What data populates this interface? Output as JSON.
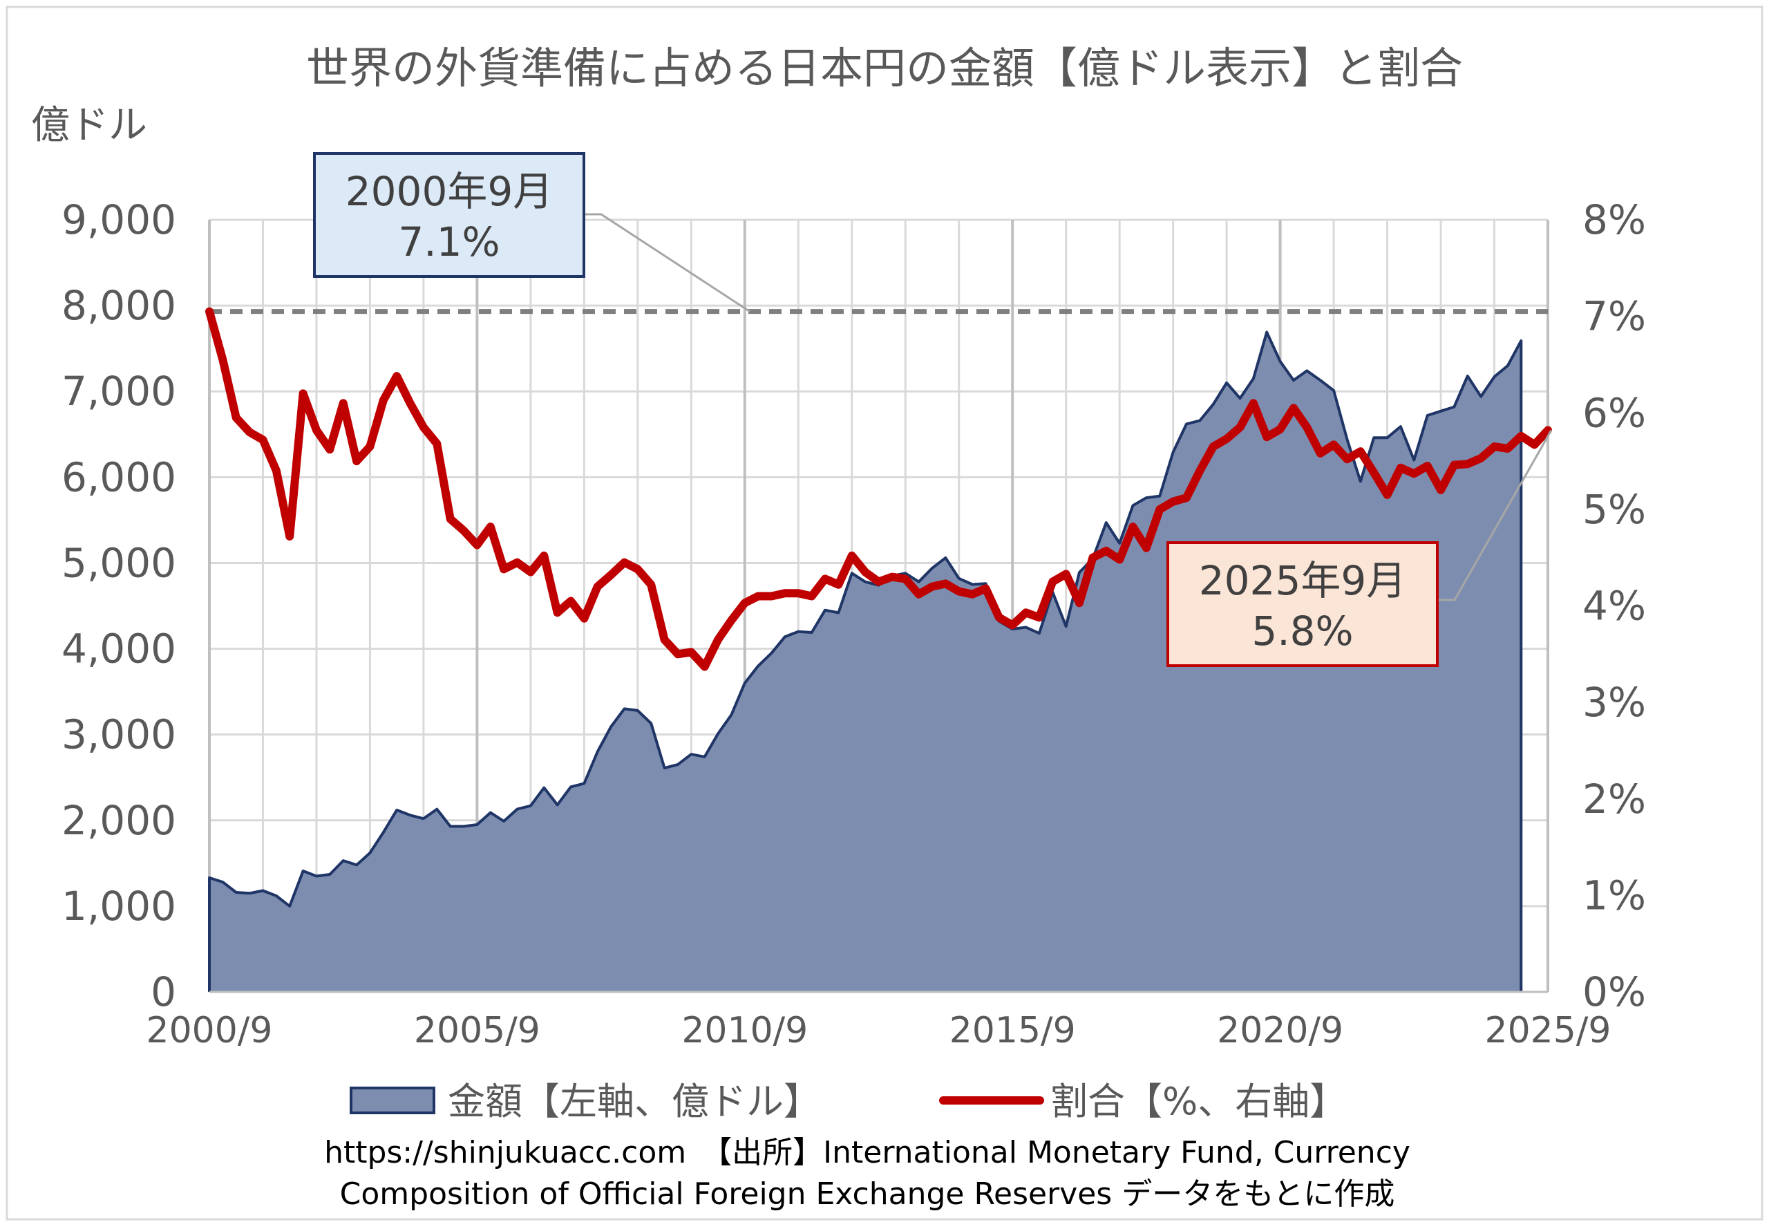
{
  "chart_data": {
    "type": "line",
    "title": "世界の外貨準備に占める日本円の金額【億ドル表示】と割合",
    "y_left_label": "億ドル",
    "y_left_range": [
      0,
      9000
    ],
    "y_left_ticks": [
      "0",
      "1,000",
      "2,000",
      "3,000",
      "4,000",
      "5,000",
      "6,000",
      "7,000",
      "8,000",
      "9,000"
    ],
    "y_right_range": [
      0,
      8
    ],
    "y_right_ticks": [
      "0%",
      "1%",
      "2%",
      "3%",
      "4%",
      "5%",
      "6%",
      "7%",
      "8%"
    ],
    "x_range": [
      2000.75,
      2025.75
    ],
    "x_ticks": [
      {
        "x": 2000.75,
        "label": "2000/9"
      },
      {
        "x": 2005.75,
        "label": "2005/9"
      },
      {
        "x": 2010.75,
        "label": "2010/9"
      },
      {
        "x": 2015.75,
        "label": "2015/9"
      },
      {
        "x": 2020.75,
        "label": "2020/9"
      },
      {
        "x": 2025.75,
        "label": "2025/9"
      }
    ],
    "grid": true,
    "legend_position": "bottom",
    "series": [
      {
        "name": "金額【左軸、億ドル】",
        "axis": "left",
        "kind": "area",
        "color": "#1f3566",
        "fill": "#7d8db0",
        "points": [
          [
            2000.75,
            1330
          ],
          [
            2001.0,
            1280
          ],
          [
            2001.25,
            1160
          ],
          [
            2001.5,
            1150
          ],
          [
            2001.75,
            1180
          ],
          [
            2002.0,
            1120
          ],
          [
            2002.25,
            1000
          ],
          [
            2002.5,
            1410
          ],
          [
            2002.75,
            1350
          ],
          [
            2003.0,
            1370
          ],
          [
            2003.25,
            1530
          ],
          [
            2003.5,
            1480
          ],
          [
            2003.75,
            1620
          ],
          [
            2004.0,
            1860
          ],
          [
            2004.25,
            2120
          ],
          [
            2004.5,
            2060
          ],
          [
            2004.75,
            2020
          ],
          [
            2005.0,
            2130
          ],
          [
            2005.25,
            1930
          ],
          [
            2005.5,
            1930
          ],
          [
            2005.75,
            1950
          ],
          [
            2006.0,
            2090
          ],
          [
            2006.25,
            1990
          ],
          [
            2006.5,
            2130
          ],
          [
            2006.75,
            2170
          ],
          [
            2007.0,
            2380
          ],
          [
            2007.25,
            2180
          ],
          [
            2007.5,
            2390
          ],
          [
            2007.75,
            2430
          ],
          [
            2008.0,
            2800
          ],
          [
            2008.25,
            3090
          ],
          [
            2008.5,
            3300
          ],
          [
            2008.75,
            3280
          ],
          [
            2009.0,
            3130
          ],
          [
            2009.25,
            2610
          ],
          [
            2009.5,
            2650
          ],
          [
            2009.75,
            2770
          ],
          [
            2010.0,
            2740
          ],
          [
            2010.25,
            3010
          ],
          [
            2010.5,
            3230
          ],
          [
            2010.75,
            3600
          ],
          [
            2011.0,
            3800
          ],
          [
            2011.25,
            3950
          ],
          [
            2011.5,
            4140
          ],
          [
            2011.75,
            4200
          ],
          [
            2012.0,
            4190
          ],
          [
            2012.25,
            4450
          ],
          [
            2012.5,
            4420
          ],
          [
            2012.75,
            4880
          ],
          [
            2013.0,
            4780
          ],
          [
            2013.25,
            4740
          ],
          [
            2013.5,
            4850
          ],
          [
            2013.75,
            4880
          ],
          [
            2014.0,
            4780
          ],
          [
            2014.25,
            4940
          ],
          [
            2014.5,
            5060
          ],
          [
            2014.75,
            4820
          ],
          [
            2015.0,
            4750
          ],
          [
            2015.25,
            4760
          ],
          [
            2015.5,
            4320
          ],
          [
            2015.75,
            4230
          ],
          [
            2016.0,
            4250
          ],
          [
            2016.25,
            4180
          ],
          [
            2016.5,
            4660
          ],
          [
            2016.75,
            4260
          ],
          [
            2017.0,
            4890
          ],
          [
            2017.25,
            5050
          ],
          [
            2017.5,
            5470
          ],
          [
            2017.75,
            5230
          ],
          [
            2018.0,
            5670
          ],
          [
            2018.25,
            5760
          ],
          [
            2018.5,
            5780
          ],
          [
            2018.75,
            6290
          ],
          [
            2019.0,
            6620
          ],
          [
            2019.25,
            6660
          ],
          [
            2019.5,
            6850
          ],
          [
            2019.75,
            7100
          ],
          [
            2020.0,
            6920
          ],
          [
            2020.25,
            7150
          ],
          [
            2020.5,
            7690
          ],
          [
            2020.75,
            7350
          ],
          [
            2021.0,
            7130
          ],
          [
            2021.25,
            7240
          ],
          [
            2021.5,
            7130
          ],
          [
            2021.75,
            7010
          ],
          [
            2022.0,
            6440
          ],
          [
            2022.25,
            5950
          ],
          [
            2022.5,
            6460
          ],
          [
            2022.75,
            6460
          ],
          [
            2023.0,
            6590
          ],
          [
            2023.25,
            6200
          ],
          [
            2023.5,
            6720
          ],
          [
            2023.75,
            6770
          ],
          [
            2024.0,
            6820
          ],
          [
            2024.25,
            7180
          ],
          [
            2024.5,
            6940
          ],
          [
            2024.75,
            7170
          ],
          [
            2025.0,
            7300
          ],
          [
            2025.25,
            7590
          ]
        ]
      },
      {
        "name": "割合【%、右軸】",
        "axis": "right",
        "kind": "line",
        "color": "#c00000",
        "points": [
          [
            2000.75,
            7.05
          ],
          [
            2001.0,
            6.55
          ],
          [
            2001.25,
            5.95
          ],
          [
            2001.5,
            5.8
          ],
          [
            2001.75,
            5.72
          ],
          [
            2002.0,
            5.4
          ],
          [
            2002.25,
            4.72
          ],
          [
            2002.5,
            6.2
          ],
          [
            2002.75,
            5.82
          ],
          [
            2003.0,
            5.62
          ],
          [
            2003.25,
            6.1
          ],
          [
            2003.5,
            5.5
          ],
          [
            2003.75,
            5.65
          ],
          [
            2004.0,
            6.13
          ],
          [
            2004.25,
            6.38
          ],
          [
            2004.5,
            6.1
          ],
          [
            2004.75,
            5.85
          ],
          [
            2005.0,
            5.68
          ],
          [
            2005.25,
            4.9
          ],
          [
            2005.5,
            4.78
          ],
          [
            2005.75,
            4.63
          ],
          [
            2006.0,
            4.82
          ],
          [
            2006.25,
            4.38
          ],
          [
            2006.5,
            4.45
          ],
          [
            2006.75,
            4.35
          ],
          [
            2007.0,
            4.52
          ],
          [
            2007.25,
            3.93
          ],
          [
            2007.5,
            4.05
          ],
          [
            2007.75,
            3.87
          ],
          [
            2008.0,
            4.2
          ],
          [
            2008.25,
            4.32
          ],
          [
            2008.5,
            4.45
          ],
          [
            2008.75,
            4.38
          ],
          [
            2009.0,
            4.22
          ],
          [
            2009.25,
            3.65
          ],
          [
            2009.5,
            3.5
          ],
          [
            2009.75,
            3.52
          ],
          [
            2010.0,
            3.37
          ],
          [
            2010.25,
            3.65
          ],
          [
            2010.5,
            3.85
          ],
          [
            2010.75,
            4.03
          ],
          [
            2011.0,
            4.1
          ],
          [
            2011.25,
            4.1
          ],
          [
            2011.5,
            4.13
          ],
          [
            2011.75,
            4.13
          ],
          [
            2012.0,
            4.1
          ],
          [
            2012.25,
            4.28
          ],
          [
            2012.5,
            4.22
          ],
          [
            2012.75,
            4.52
          ],
          [
            2013.0,
            4.35
          ],
          [
            2013.25,
            4.25
          ],
          [
            2013.5,
            4.3
          ],
          [
            2013.75,
            4.28
          ],
          [
            2014.0,
            4.12
          ],
          [
            2014.25,
            4.2
          ],
          [
            2014.5,
            4.23
          ],
          [
            2014.75,
            4.15
          ],
          [
            2015.0,
            4.12
          ],
          [
            2015.25,
            4.18
          ],
          [
            2015.5,
            3.88
          ],
          [
            2015.75,
            3.8
          ],
          [
            2016.0,
            3.93
          ],
          [
            2016.25,
            3.88
          ],
          [
            2016.5,
            4.25
          ],
          [
            2016.75,
            4.33
          ],
          [
            2017.0,
            4.03
          ],
          [
            2017.25,
            4.5
          ],
          [
            2017.5,
            4.57
          ],
          [
            2017.75,
            4.48
          ],
          [
            2018.0,
            4.82
          ],
          [
            2018.25,
            4.6
          ],
          [
            2018.5,
            5.0
          ],
          [
            2018.75,
            5.08
          ],
          [
            2019.0,
            5.12
          ],
          [
            2019.25,
            5.4
          ],
          [
            2019.5,
            5.65
          ],
          [
            2019.75,
            5.73
          ],
          [
            2020.0,
            5.85
          ],
          [
            2020.25,
            6.1
          ],
          [
            2020.5,
            5.75
          ],
          [
            2020.75,
            5.83
          ],
          [
            2021.0,
            6.05
          ],
          [
            2021.25,
            5.85
          ],
          [
            2021.5,
            5.58
          ],
          [
            2021.75,
            5.67
          ],
          [
            2022.0,
            5.52
          ],
          [
            2022.25,
            5.6
          ],
          [
            2022.5,
            5.38
          ],
          [
            2022.75,
            5.15
          ],
          [
            2023.0,
            5.43
          ],
          [
            2023.25,
            5.37
          ],
          [
            2023.5,
            5.45
          ],
          [
            2023.75,
            5.2
          ],
          [
            2024.0,
            5.46
          ],
          [
            2024.25,
            5.47
          ],
          [
            2024.5,
            5.53
          ],
          [
            2024.75,
            5.65
          ],
          [
            2025.0,
            5.63
          ],
          [
            2025.25,
            5.76
          ],
          [
            2025.5,
            5.67
          ],
          [
            2025.75,
            5.82
          ]
        ]
      }
    ],
    "reference_line": {
      "axis": "right",
      "value": 7.05,
      "style": "dashed",
      "color": "#7f7f7f"
    },
    "annotations": [
      {
        "key": "start",
        "line1": "2000年9月",
        "line2": "7.1%",
        "bg": "#dce9f6",
        "border": "#1f3566",
        "at_x": 2010.75
      },
      {
        "key": "end",
        "line1": "2025年9月",
        "line2": "5.8%",
        "bg": "#fbe5d6",
        "border": "#c00000",
        "at_x": 2025.75
      }
    ],
    "legend": [
      "金額【左軸、億ドル】",
      "割合【%、右軸】"
    ]
  },
  "footer": {
    "line1": "https://shinjukuacc.com　【出所】International Monetary Fund, Currency",
    "line2": "Composition of Official Foreign Exchange Reserves データをもとに作成"
  }
}
